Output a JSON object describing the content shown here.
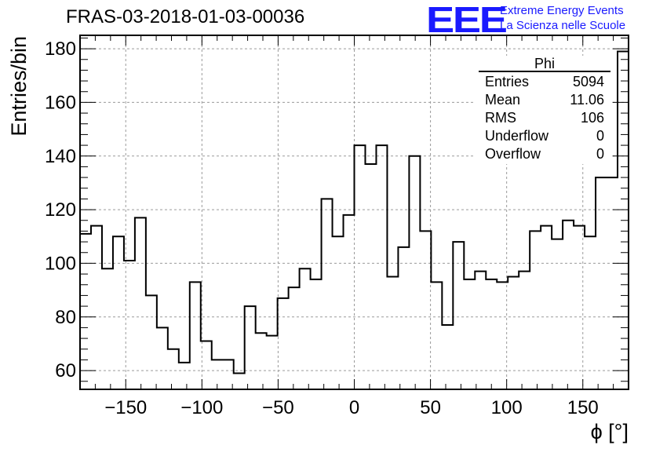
{
  "header": {
    "title": "FRAS-03-2018-01-03-00036",
    "logo_letters": "EEE",
    "logo_line1": "Extreme Energy Events",
    "logo_line2": "La Scienza nelle Scuole"
  },
  "colors": {
    "histogram": "#000000",
    "grid": "#9a9a9a",
    "logo": "#1a1aff"
  },
  "stats": {
    "title": "Phi",
    "rows": [
      {
        "label": "Entries",
        "value": "5094"
      },
      {
        "label": "Mean",
        "value": "11.06"
      },
      {
        "label": "RMS",
        "value": "106"
      },
      {
        "label": "Underflow",
        "value": "0"
      },
      {
        "label": "Overflow",
        "value": "0"
      }
    ]
  },
  "chart_data": {
    "type": "histogram",
    "title": "FRAS-03-2018-01-03-00036",
    "xlabel": "ϕ [°]",
    "ylabel": "Entries/bin",
    "xlim": [
      -180,
      180
    ],
    "ylim": [
      53,
      185
    ],
    "bin_width": 7.2,
    "bin_edges_start": -180,
    "values": [
      111,
      114,
      98,
      110,
      101,
      117,
      88,
      76,
      68,
      63,
      93,
      71,
      64,
      64,
      59,
      84,
      74,
      73,
      87,
      91,
      98,
      94,
      124,
      110,
      118,
      144,
      137,
      144,
      95,
      106,
      140,
      112,
      93,
      77,
      108,
      94,
      97,
      94,
      93,
      95,
      97,
      112,
      114,
      109,
      116,
      114,
      110,
      132,
      132,
      179
    ],
    "x_ticks": [
      -150,
      -100,
      -50,
      0,
      50,
      100,
      150
    ],
    "x_tick_labels": [
      "−150",
      "−100",
      "−50",
      "0",
      "50",
      "100",
      "150"
    ],
    "y_ticks": [
      60,
      80,
      100,
      120,
      140,
      160,
      180
    ],
    "y_tick_labels": [
      "60",
      "80",
      "100",
      "120",
      "140",
      "160",
      "180"
    ],
    "grid": true,
    "legend": "stats box top-right"
  }
}
